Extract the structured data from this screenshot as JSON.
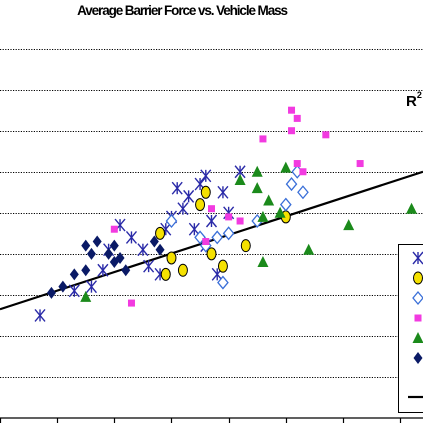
{
  "chart_data": {
    "type": "scatter",
    "title": "Average Barrier Force vs. Vehicle Mass",
    "trendline_label": "R",
    "trendline_label_sup": "2",
    "x_domain": [
      0.0,
      7.4
    ],
    "y_domain": [
      0.0,
      9.6
    ],
    "grid": "horizontal",
    "legend_position": "right",
    "trendline": {
      "x1": 0.0,
      "y1": 2.65,
      "x2": 7.4,
      "y2": 6.0
    },
    "series": [
      {
        "marker": "x",
        "color": "#2a2aa8",
        "points": [
          [
            0.7,
            2.5
          ],
          [
            1.6,
            3.2
          ],
          [
            1.9,
            4.1
          ],
          [
            2.1,
            4.7
          ],
          [
            2.3,
            4.4
          ],
          [
            2.5,
            4.1
          ],
          [
            2.6,
            3.7
          ],
          [
            2.8,
            3.5
          ],
          [
            2.9,
            4.6
          ],
          [
            3.0,
            4.9
          ],
          [
            3.1,
            5.6
          ],
          [
            3.2,
            5.1
          ],
          [
            3.3,
            5.4
          ],
          [
            3.4,
            4.6
          ],
          [
            3.5,
            5.7
          ],
          [
            3.6,
            5.9
          ],
          [
            3.6,
            4.2
          ],
          [
            3.7,
            4.8
          ],
          [
            3.8,
            3.5
          ],
          [
            3.9,
            5.5
          ],
          [
            4.0,
            5.0
          ],
          [
            4.2,
            6.0
          ],
          [
            1.3,
            3.1
          ],
          [
            1.8,
            3.6
          ]
        ]
      },
      {
        "marker": "circle",
        "color": "#f5e100",
        "points": [
          [
            2.8,
            4.5
          ],
          [
            2.9,
            3.5
          ],
          [
            3.0,
            3.9
          ],
          [
            3.2,
            3.6
          ],
          [
            3.5,
            5.2
          ],
          [
            3.6,
            5.5
          ],
          [
            3.7,
            4.0
          ],
          [
            3.9,
            3.7
          ],
          [
            4.3,
            4.2
          ],
          [
            5.0,
            4.9
          ]
        ]
      },
      {
        "marker": "diamond-open",
        "color": "#3a6fd8",
        "points": [
          [
            3.6,
            4.2
          ],
          [
            3.8,
            4.4
          ],
          [
            3.9,
            3.3
          ],
          [
            4.0,
            4.5
          ],
          [
            5.0,
            5.2
          ],
          [
            5.1,
            5.7
          ],
          [
            5.2,
            6.0
          ],
          [
            5.3,
            5.5
          ],
          [
            4.5,
            4.8
          ],
          [
            3.0,
            4.8
          ],
          [
            3.5,
            4.4
          ]
        ]
      },
      {
        "marker": "square",
        "color": "#f23ae0",
        "points": [
          [
            2.0,
            4.6
          ],
          [
            2.3,
            2.8
          ],
          [
            3.6,
            4.3
          ],
          [
            3.7,
            5.1
          ],
          [
            4.0,
            4.9
          ],
          [
            4.2,
            4.8
          ],
          [
            4.6,
            6.8
          ],
          [
            5.1,
            7.0
          ],
          [
            5.2,
            6.2
          ],
          [
            5.3,
            6.0
          ],
          [
            5.1,
            7.5
          ],
          [
            5.2,
            7.3
          ],
          [
            5.7,
            6.9
          ],
          [
            6.3,
            6.2
          ]
        ]
      },
      {
        "marker": "triangle",
        "color": "#1b8a1b",
        "points": [
          [
            1.5,
            2.95
          ],
          [
            4.2,
            5.8
          ],
          [
            4.5,
            6.0
          ],
          [
            4.6,
            4.9
          ],
          [
            4.7,
            5.3
          ],
          [
            4.9,
            5.0
          ],
          [
            5.4,
            4.1
          ],
          [
            4.6,
            3.8
          ],
          [
            6.1,
            4.7
          ],
          [
            7.2,
            5.1
          ],
          [
            4.5,
            5.6
          ],
          [
            5.0,
            6.1
          ]
        ]
      },
      {
        "marker": "diamond",
        "color": "#0a1a66",
        "points": [
          [
            0.9,
            3.05
          ],
          [
            1.1,
            3.2
          ],
          [
            1.3,
            3.5
          ],
          [
            1.5,
            3.6
          ],
          [
            1.6,
            4.0
          ],
          [
            1.7,
            4.3
          ],
          [
            1.9,
            4.0
          ],
          [
            2.0,
            3.8
          ],
          [
            2.1,
            3.9
          ],
          [
            2.2,
            3.6
          ],
          [
            2.7,
            4.3
          ],
          [
            2.8,
            4.1
          ],
          [
            1.5,
            4.2
          ],
          [
            2.0,
            4.2
          ]
        ]
      }
    ]
  }
}
